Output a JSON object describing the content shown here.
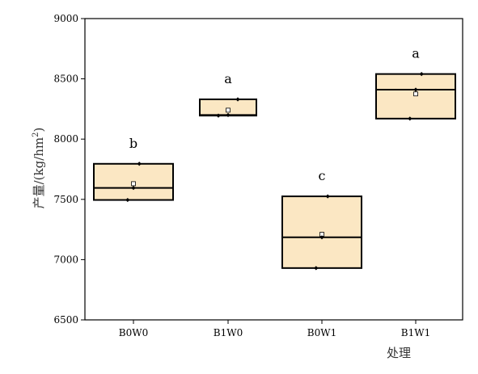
{
  "chart_data": {
    "type": "box",
    "xlabel": "处理",
    "ylabel": "产量/(kg/hm",
    "ylabel_superscript": "2",
    "ylabel_suffix": ")",
    "ylim": [
      6500,
      9000
    ],
    "yticks": [
      6500,
      7000,
      7500,
      8000,
      8500,
      9000
    ],
    "categories": [
      "B0W0",
      "B1W0",
      "B0W1",
      "B1W1"
    ],
    "boxes": [
      {
        "category": "B0W0",
        "min": 7495,
        "median": 7595,
        "max": 7795,
        "mean": 7630,
        "points": [
          7495,
          7595,
          7795
        ],
        "significance": "b"
      },
      {
        "category": "B1W0",
        "min": 8195,
        "median": 8200,
        "max": 8330,
        "mean": 8240,
        "points": [
          8195,
          8200,
          8330
        ],
        "significance": "a"
      },
      {
        "category": "B0W1",
        "min": 6930,
        "median": 7185,
        "max": 7525,
        "mean": 7210,
        "points": [
          6930,
          7185,
          7525
        ],
        "significance": "c"
      },
      {
        "category": "B1W1",
        "min": 8170,
        "median": 8410,
        "max": 8540,
        "mean": 8375,
        "points": [
          8170,
          8410,
          8540
        ],
        "significance": "a"
      }
    ],
    "box_fill": "#fbe7c3",
    "box_stroke": "#000000"
  }
}
